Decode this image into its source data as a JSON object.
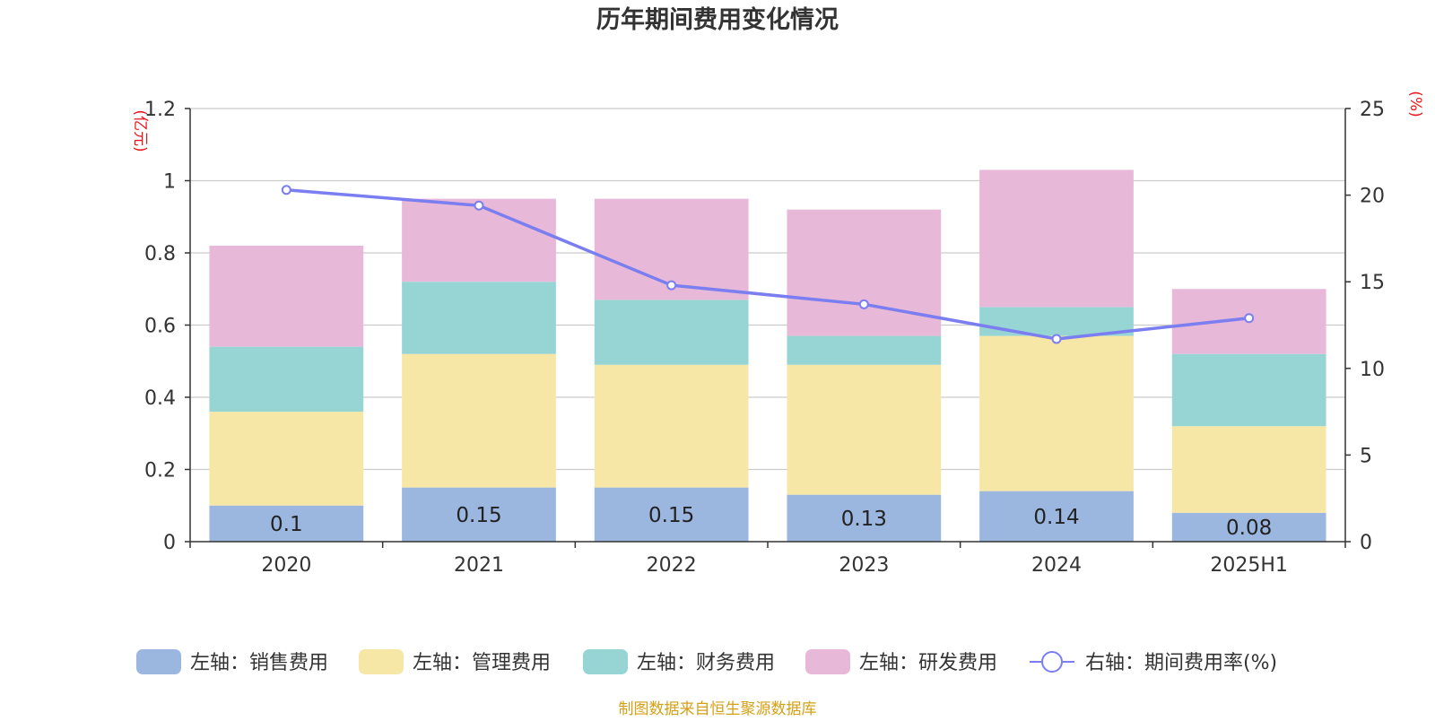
{
  "chart_data": {
    "type": "bar",
    "title": "历年期间费用变化情况",
    "categories": [
      "2020",
      "2021",
      "2022",
      "2023",
      "2024",
      "2025H1"
    ],
    "y_left_label": "(亿元)",
    "y_right_label": "(%)",
    "y_left_range": [
      0,
      1.2
    ],
    "y_left_ticks": [
      "0",
      "0.2",
      "0.4",
      "0.6",
      "0.8",
      "1",
      "1.2"
    ],
    "y_right_range": [
      0,
      25
    ],
    "y_right_ticks": [
      "0",
      "5",
      "10",
      "15",
      "20",
      "25"
    ],
    "grid": true,
    "legend_position": "bottom",
    "stacked": true,
    "series": [
      {
        "name": "左轴：销售费用",
        "axis": "left",
        "type": "bar",
        "color": "#9bb7e0",
        "values": [
          0.1,
          0.15,
          0.15,
          0.13,
          0.14,
          0.08
        ],
        "labels": [
          "0.1",
          "0.15",
          "0.15",
          "0.13",
          "0.14",
          "0.08"
        ]
      },
      {
        "name": "左轴：管理费用",
        "axis": "left",
        "type": "bar",
        "color": "#f7e7a6",
        "values": [
          0.26,
          0.37,
          0.34,
          0.36,
          0.43,
          0.24
        ]
      },
      {
        "name": "左轴：财务费用",
        "axis": "left",
        "type": "bar",
        "color": "#97d4d4",
        "values": [
          0.18,
          0.2,
          0.18,
          0.08,
          0.08,
          0.2
        ]
      },
      {
        "name": "左轴：研发费用",
        "axis": "left",
        "type": "bar",
        "color": "#e7b8d8",
        "values": [
          0.28,
          0.23,
          0.28,
          0.35,
          0.38,
          0.18
        ]
      },
      {
        "name": "右轴：期间费用率(%)",
        "axis": "right",
        "type": "line",
        "color": "#7b7ef0",
        "values": [
          20.3,
          19.4,
          14.8,
          13.7,
          11.7,
          12.9
        ]
      }
    ],
    "source": "制图数据来自恒生聚源数据库"
  },
  "colors": {
    "axis_label": "#e8161c",
    "source_text": "#d4a017",
    "grid": "#cccccc",
    "axis": "#333333"
  }
}
